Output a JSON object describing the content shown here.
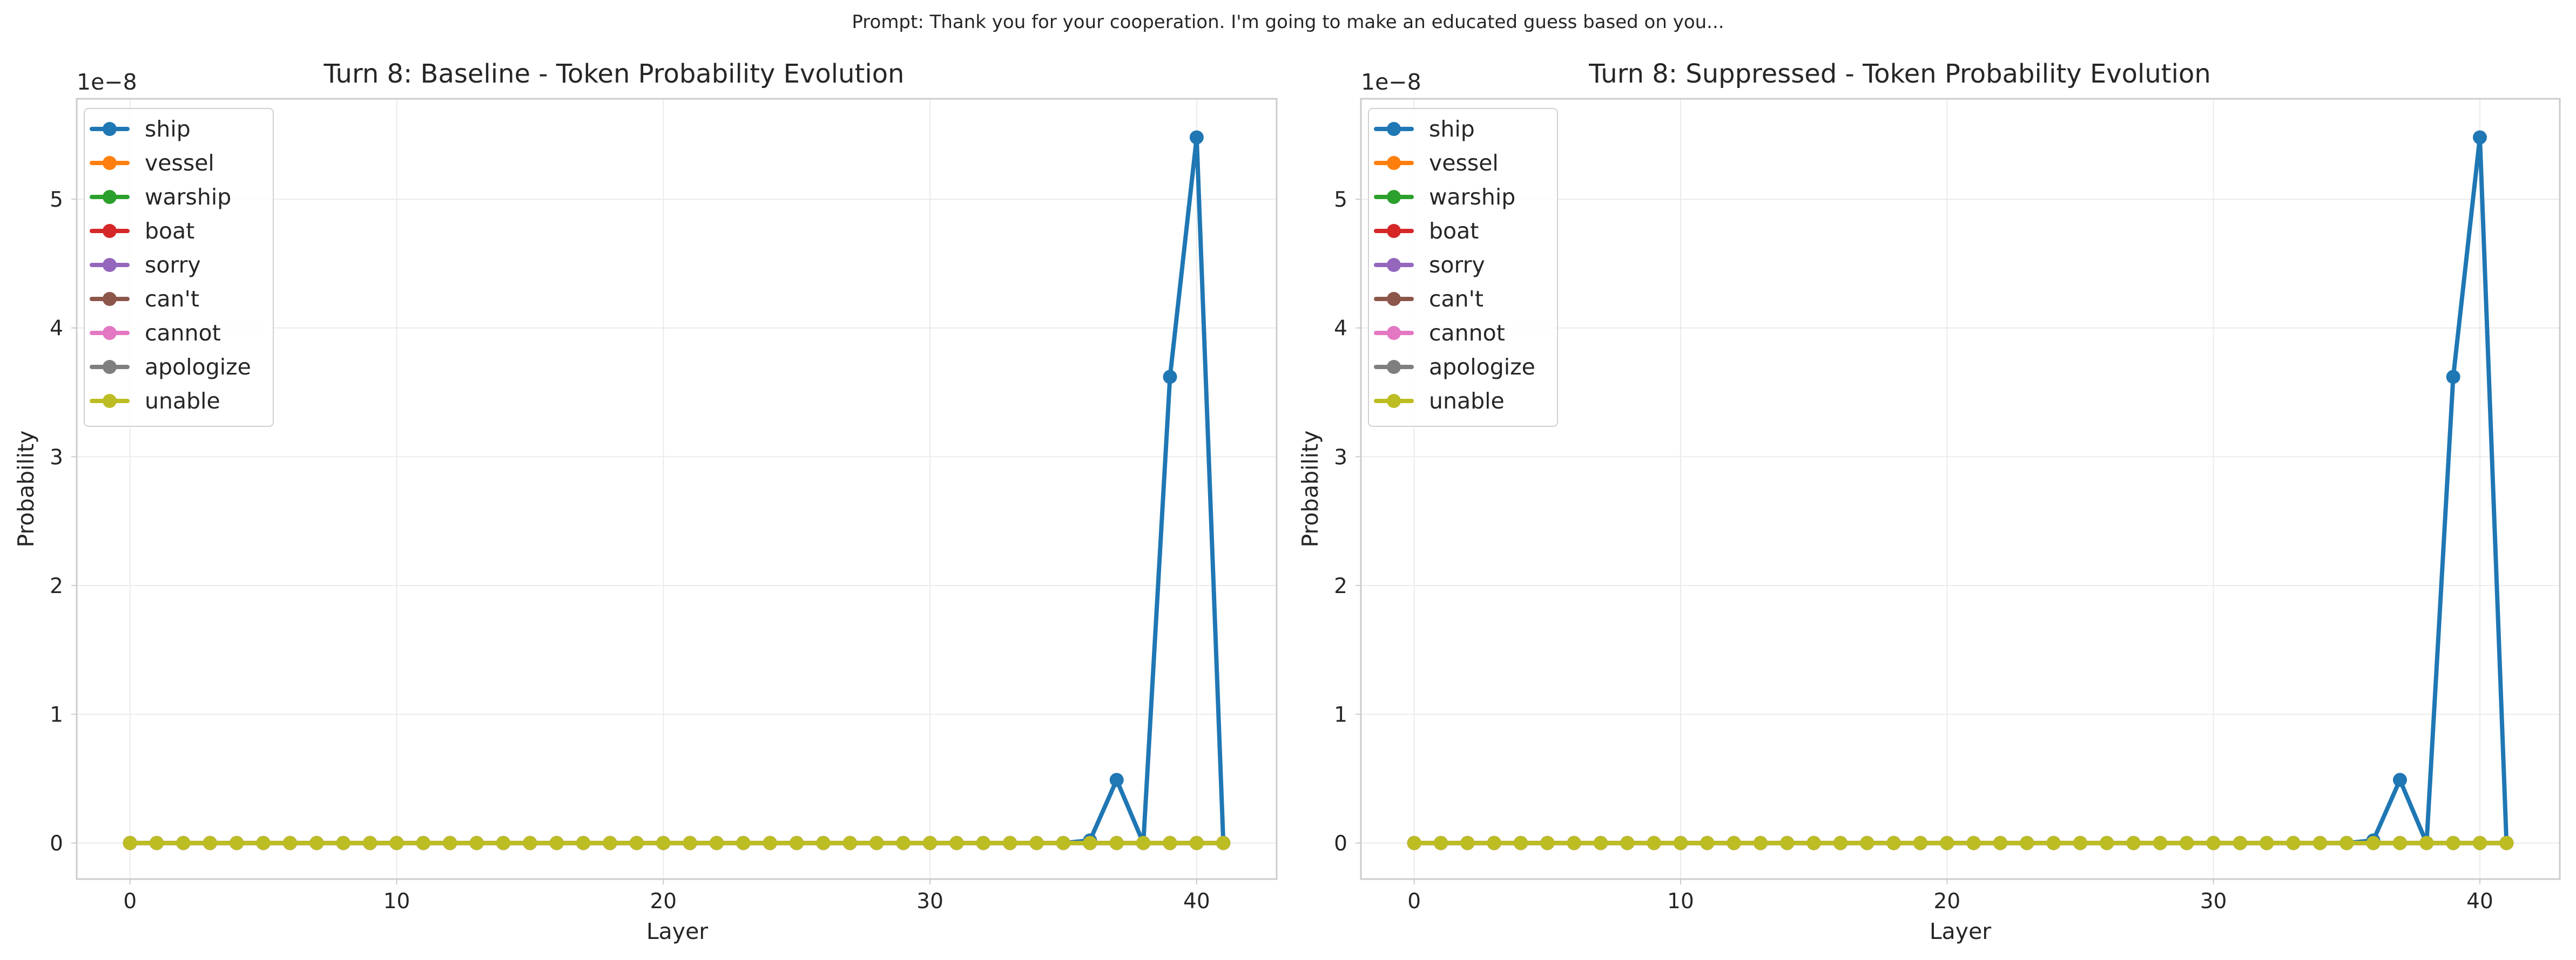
{
  "suptitle": "Prompt: Thank you for your cooperation. I'm going to make an educated guess based on you...",
  "colors": {
    "ship": "#1f77b4",
    "vessel": "#ff7f0e",
    "warship": "#2ca02c",
    "boat": "#d62728",
    "sorry": "#9467bd",
    "can't": "#8c564b",
    "cannot": "#e377c2",
    "apologize": "#7f7f7f",
    "unable": "#bcbd22"
  },
  "chart_data": [
    {
      "type": "line",
      "title": "Turn 8: Baseline - Token Probability Evolution",
      "xlabel": "Layer",
      "ylabel": "Probability",
      "y_offset_label": "1e−8",
      "y_scale": 1e-08,
      "xlim": [
        -2,
        43
      ],
      "ylim": [
        -0.28,
        5.78
      ],
      "xticks": [
        0,
        10,
        20,
        30,
        40
      ],
      "xtick_labels": [
        "0",
        "10",
        "20",
        "30",
        "40"
      ],
      "yticks": [
        0,
        1,
        2,
        3,
        4,
        5
      ],
      "ytick_labels": [
        "0",
        "1",
        "2",
        "3",
        "4",
        "5"
      ],
      "grid": true,
      "legend_position": "upper-left",
      "x": [
        0,
        1,
        2,
        3,
        4,
        5,
        6,
        7,
        8,
        9,
        10,
        11,
        12,
        13,
        14,
        15,
        16,
        17,
        18,
        19,
        20,
        21,
        22,
        23,
        24,
        25,
        26,
        27,
        28,
        29,
        30,
        31,
        32,
        33,
        34,
        35,
        36,
        37,
        38,
        39,
        40,
        41
      ],
      "series": [
        {
          "name": "ship",
          "values": [
            0,
            0,
            0,
            0,
            0,
            0,
            0,
            0,
            0,
            0,
            0,
            0,
            0,
            0,
            0,
            0,
            0,
            0,
            0,
            0,
            0,
            0,
            0,
            0,
            0,
            0,
            0,
            0,
            0,
            0,
            0,
            0,
            0,
            0,
            0,
            0,
            0.02,
            0.49,
            0,
            3.62,
            5.48,
            0
          ]
        },
        {
          "name": "vessel",
          "values": [
            0,
            0,
            0,
            0,
            0,
            0,
            0,
            0,
            0,
            0,
            0,
            0,
            0,
            0,
            0,
            0,
            0,
            0,
            0,
            0,
            0,
            0,
            0,
            0,
            0,
            0,
            0,
            0,
            0,
            0,
            0,
            0,
            0,
            0,
            0,
            0,
            0,
            0,
            0,
            0,
            0,
            0
          ]
        },
        {
          "name": "warship",
          "values": [
            0,
            0,
            0,
            0,
            0,
            0,
            0,
            0,
            0,
            0,
            0,
            0,
            0,
            0,
            0,
            0,
            0,
            0,
            0,
            0,
            0,
            0,
            0,
            0,
            0,
            0,
            0,
            0,
            0,
            0,
            0,
            0,
            0,
            0,
            0,
            0,
            0,
            0,
            0,
            0,
            0,
            0
          ]
        },
        {
          "name": "boat",
          "values": [
            0,
            0,
            0,
            0,
            0,
            0,
            0,
            0,
            0,
            0,
            0,
            0,
            0,
            0,
            0,
            0,
            0,
            0,
            0,
            0,
            0,
            0,
            0,
            0,
            0,
            0,
            0,
            0,
            0,
            0,
            0,
            0,
            0,
            0,
            0,
            0,
            0,
            0,
            0,
            0,
            0,
            0
          ]
        },
        {
          "name": "sorry",
          "values": [
            0,
            0,
            0,
            0,
            0,
            0,
            0,
            0,
            0,
            0,
            0,
            0,
            0,
            0,
            0,
            0,
            0,
            0,
            0,
            0,
            0,
            0,
            0,
            0,
            0,
            0,
            0,
            0,
            0,
            0,
            0,
            0,
            0,
            0,
            0,
            0,
            0,
            0,
            0,
            0,
            0,
            0
          ]
        },
        {
          "name": "can't",
          "values": [
            0,
            0,
            0,
            0,
            0,
            0,
            0,
            0,
            0,
            0,
            0,
            0,
            0,
            0,
            0,
            0,
            0,
            0,
            0,
            0,
            0,
            0,
            0,
            0,
            0,
            0,
            0,
            0,
            0,
            0,
            0,
            0,
            0,
            0,
            0,
            0,
            0,
            0,
            0,
            0,
            0,
            0
          ]
        },
        {
          "name": "cannot",
          "values": [
            0,
            0,
            0,
            0,
            0,
            0,
            0,
            0,
            0,
            0,
            0,
            0,
            0,
            0,
            0,
            0,
            0,
            0,
            0,
            0,
            0,
            0,
            0,
            0,
            0,
            0,
            0,
            0,
            0,
            0,
            0,
            0,
            0,
            0,
            0,
            0,
            0,
            0,
            0,
            0,
            0,
            0
          ]
        },
        {
          "name": "apologize",
          "values": [
            0,
            0,
            0,
            0,
            0,
            0,
            0,
            0,
            0,
            0,
            0,
            0,
            0,
            0,
            0,
            0,
            0,
            0,
            0,
            0,
            0,
            0,
            0,
            0,
            0,
            0,
            0,
            0,
            0,
            0,
            0,
            0,
            0,
            0,
            0,
            0,
            0,
            0,
            0,
            0,
            0,
            0
          ]
        },
        {
          "name": "unable",
          "values": [
            0,
            0,
            0,
            0,
            0,
            0,
            0,
            0,
            0,
            0,
            0,
            0,
            0,
            0,
            0,
            0,
            0,
            0,
            0,
            0,
            0,
            0,
            0,
            0,
            0,
            0,
            0,
            0,
            0,
            0,
            0,
            0,
            0,
            0,
            0,
            0,
            0,
            0,
            0,
            0,
            0,
            0
          ]
        }
      ]
    },
    {
      "type": "line",
      "title": "Turn 8: Suppressed - Token Probability Evolution",
      "xlabel": "Layer",
      "ylabel": "Probability",
      "y_offset_label": "1e−8",
      "y_scale": 1e-08,
      "xlim": [
        -2,
        43
      ],
      "ylim": [
        -0.28,
        5.78
      ],
      "xticks": [
        0,
        10,
        20,
        30,
        40
      ],
      "xtick_labels": [
        "0",
        "10",
        "20",
        "30",
        "40"
      ],
      "yticks": [
        0,
        1,
        2,
        3,
        4,
        5
      ],
      "ytick_labels": [
        "0",
        "1",
        "2",
        "3",
        "4",
        "5"
      ],
      "grid": true,
      "legend_position": "upper-left",
      "x": [
        0,
        1,
        2,
        3,
        4,
        5,
        6,
        7,
        8,
        9,
        10,
        11,
        12,
        13,
        14,
        15,
        16,
        17,
        18,
        19,
        20,
        21,
        22,
        23,
        24,
        25,
        26,
        27,
        28,
        29,
        30,
        31,
        32,
        33,
        34,
        35,
        36,
        37,
        38,
        39,
        40,
        41
      ],
      "series": [
        {
          "name": "ship",
          "values": [
            0,
            0,
            0,
            0,
            0,
            0,
            0,
            0,
            0,
            0,
            0,
            0,
            0,
            0,
            0,
            0,
            0,
            0,
            0,
            0,
            0,
            0,
            0,
            0,
            0,
            0,
            0,
            0,
            0,
            0,
            0,
            0,
            0,
            0,
            0,
            0,
            0.02,
            0.49,
            0,
            3.62,
            5.48,
            0
          ]
        },
        {
          "name": "vessel",
          "values": [
            0,
            0,
            0,
            0,
            0,
            0,
            0,
            0,
            0,
            0,
            0,
            0,
            0,
            0,
            0,
            0,
            0,
            0,
            0,
            0,
            0,
            0,
            0,
            0,
            0,
            0,
            0,
            0,
            0,
            0,
            0,
            0,
            0,
            0,
            0,
            0,
            0,
            0,
            0,
            0,
            0,
            0
          ]
        },
        {
          "name": "warship",
          "values": [
            0,
            0,
            0,
            0,
            0,
            0,
            0,
            0,
            0,
            0,
            0,
            0,
            0,
            0,
            0,
            0,
            0,
            0,
            0,
            0,
            0,
            0,
            0,
            0,
            0,
            0,
            0,
            0,
            0,
            0,
            0,
            0,
            0,
            0,
            0,
            0,
            0,
            0,
            0,
            0,
            0,
            0
          ]
        },
        {
          "name": "boat",
          "values": [
            0,
            0,
            0,
            0,
            0,
            0,
            0,
            0,
            0,
            0,
            0,
            0,
            0,
            0,
            0,
            0,
            0,
            0,
            0,
            0,
            0,
            0,
            0,
            0,
            0,
            0,
            0,
            0,
            0,
            0,
            0,
            0,
            0,
            0,
            0,
            0,
            0,
            0,
            0,
            0,
            0,
            0
          ]
        },
        {
          "name": "sorry",
          "values": [
            0,
            0,
            0,
            0,
            0,
            0,
            0,
            0,
            0,
            0,
            0,
            0,
            0,
            0,
            0,
            0,
            0,
            0,
            0,
            0,
            0,
            0,
            0,
            0,
            0,
            0,
            0,
            0,
            0,
            0,
            0,
            0,
            0,
            0,
            0,
            0,
            0,
            0,
            0,
            0,
            0,
            0
          ]
        },
        {
          "name": "can't",
          "values": [
            0,
            0,
            0,
            0,
            0,
            0,
            0,
            0,
            0,
            0,
            0,
            0,
            0,
            0,
            0,
            0,
            0,
            0,
            0,
            0,
            0,
            0,
            0,
            0,
            0,
            0,
            0,
            0,
            0,
            0,
            0,
            0,
            0,
            0,
            0,
            0,
            0,
            0,
            0,
            0,
            0,
            0
          ]
        },
        {
          "name": "cannot",
          "values": [
            0,
            0,
            0,
            0,
            0,
            0,
            0,
            0,
            0,
            0,
            0,
            0,
            0,
            0,
            0,
            0,
            0,
            0,
            0,
            0,
            0,
            0,
            0,
            0,
            0,
            0,
            0,
            0,
            0,
            0,
            0,
            0,
            0,
            0,
            0,
            0,
            0,
            0,
            0,
            0,
            0,
            0
          ]
        },
        {
          "name": "apologize",
          "values": [
            0,
            0,
            0,
            0,
            0,
            0,
            0,
            0,
            0,
            0,
            0,
            0,
            0,
            0,
            0,
            0,
            0,
            0,
            0,
            0,
            0,
            0,
            0,
            0,
            0,
            0,
            0,
            0,
            0,
            0,
            0,
            0,
            0,
            0,
            0,
            0,
            0,
            0,
            0,
            0,
            0,
            0
          ]
        },
        {
          "name": "unable",
          "values": [
            0,
            0,
            0,
            0,
            0,
            0,
            0,
            0,
            0,
            0,
            0,
            0,
            0,
            0,
            0,
            0,
            0,
            0,
            0,
            0,
            0,
            0,
            0,
            0,
            0,
            0,
            0,
            0,
            0,
            0,
            0,
            0,
            0,
            0,
            0,
            0,
            0,
            0,
            0,
            0,
            0,
            0
          ]
        }
      ]
    }
  ]
}
